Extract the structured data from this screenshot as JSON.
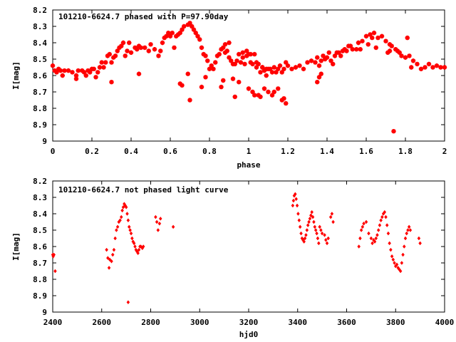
{
  "chart_data": [
    {
      "type": "scatter",
      "title": "101210-6624.7 phased with P=97.90day",
      "xlabel": "phase",
      "ylabel": "I[mag]",
      "xlim": [
        0,
        2
      ],
      "ylim": [
        8.2,
        9
      ],
      "y_inverted": true,
      "xticks": [
        "0",
        "0.2",
        "0.4",
        "0.6",
        "0.8",
        "1",
        "1.2",
        "1.4",
        "1.6",
        "1.8",
        "2"
      ],
      "xtick_values": [
        0,
        0.2,
        0.4,
        0.6,
        0.8,
        1,
        1.2,
        1.4,
        1.6,
        1.8,
        2
      ],
      "yticks": [
        "8.2",
        "8.3",
        "8.4",
        "8.5",
        "8.6",
        "8.7",
        "8.8",
        "8.9",
        "9"
      ],
      "ytick_values": [
        8.2,
        8.3,
        8.4,
        8.5,
        8.6,
        8.7,
        8.8,
        8.9,
        9.0
      ],
      "marker": "star",
      "color": "#ff0000",
      "series": [
        {
          "x": [
            0.0,
            0.01,
            0.02,
            0.03,
            0.04,
            0.06,
            0.08,
            0.1,
            0.12,
            0.13,
            0.15,
            0.16,
            0.17,
            0.18,
            0.19,
            0.2,
            0.21,
            0.22,
            0.23,
            0.24,
            0.25,
            0.26,
            0.27,
            0.28,
            0.29,
            0.3,
            0.31,
            0.32,
            0.33,
            0.34,
            0.35,
            0.36,
            0.37,
            0.38,
            0.39,
            0.4,
            0.42,
            0.43,
            0.44,
            0.45,
            0.47,
            0.49,
            0.5,
            0.52,
            0.54,
            0.55,
            0.56,
            0.57,
            0.58,
            0.59,
            0.6,
            0.61,
            0.62,
            0.63,
            0.64,
            0.65,
            0.66,
            0.67,
            0.69,
            0.7,
            0.71,
            0.72,
            0.73,
            0.74,
            0.75,
            0.76,
            0.77,
            0.78,
            0.79,
            0.8,
            0.81,
            0.82,
            0.83,
            0.84,
            0.85,
            0.86,
            0.87,
            0.88,
            0.89,
            0.9,
            0.91,
            0.92,
            0.93,
            0.94,
            0.95,
            0.96,
            0.97,
            0.98,
            0.99,
            1.0,
            1.01,
            1.02,
            1.03,
            1.04,
            1.05,
            1.06,
            1.07,
            1.08,
            1.09,
            1.1,
            1.11,
            1.12,
            1.13,
            1.14,
            1.15,
            1.16,
            1.17,
            1.18,
            1.19,
            1.2,
            1.22,
            1.24,
            1.26,
            1.28,
            1.3,
            1.32,
            1.34,
            1.35,
            1.36,
            1.37,
            1.38,
            1.39,
            1.4,
            1.41,
            1.42,
            1.43,
            1.44,
            1.45,
            1.46,
            1.47,
            1.48,
            1.49,
            1.5,
            1.51,
            1.52,
            1.53,
            1.55,
            1.56,
            1.58,
            1.6,
            1.62,
            1.63,
            1.64,
            1.66,
            1.68,
            1.7,
            1.72,
            1.73,
            1.75,
            1.77,
            1.78,
            1.8,
            1.82,
            1.84,
            1.86,
            1.88,
            1.9,
            1.92,
            1.94,
            1.96,
            1.98,
            2.0,
            0.65,
            0.66,
            0.69,
            0.7,
            0.86,
            0.87,
            0.92,
            0.93,
            0.95,
            1.0,
            1.02,
            1.03,
            1.05,
            1.06,
            1.08,
            1.1,
            1.12,
            1.13,
            1.15,
            1.17,
            1.18,
            1.19,
            0.44,
            0.3,
            0.12,
            0.05,
            0.76,
            0.78,
            0.88,
            0.9,
            0.97,
            0.99,
            1.01,
            1.04,
            1.07,
            1.09,
            1.35,
            1.36,
            1.37,
            1.57,
            1.61,
            1.65,
            1.71,
            1.72,
            1.74,
            1.76,
            1.81,
            1.83
          ],
          "y": [
            8.54,
            8.57,
            8.58,
            8.56,
            8.57,
            8.57,
            8.57,
            8.58,
            8.6,
            8.57,
            8.57,
            8.58,
            8.6,
            8.57,
            8.58,
            8.56,
            8.56,
            8.61,
            8.58,
            8.55,
            8.52,
            8.55,
            8.52,
            8.48,
            8.47,
            8.52,
            8.49,
            8.48,
            8.45,
            8.43,
            8.42,
            8.4,
            8.48,
            8.45,
            8.4,
            8.46,
            8.43,
            8.44,
            8.42,
            8.43,
            8.43,
            8.45,
            8.41,
            8.44,
            8.48,
            8.45,
            8.4,
            8.37,
            8.36,
            8.34,
            8.36,
            8.34,
            8.43,
            8.36,
            8.35,
            8.34,
            8.32,
            8.3,
            8.29,
            8.28,
            8.3,
            8.32,
            8.34,
            8.36,
            8.38,
            8.43,
            8.47,
            8.48,
            8.51,
            8.56,
            8.54,
            8.56,
            8.52,
            8.48,
            8.47,
            8.44,
            8.43,
            8.41,
            8.45,
            8.49,
            8.51,
            8.53,
            8.53,
            8.51,
            8.47,
            8.52,
            8.49,
            8.53,
            8.48,
            8.47,
            8.52,
            8.53,
            8.47,
            8.55,
            8.53,
            8.58,
            8.55,
            8.57,
            8.56,
            8.56,
            8.56,
            8.58,
            8.55,
            8.58,
            8.56,
            8.54,
            8.58,
            8.56,
            8.52,
            8.54,
            8.56,
            8.55,
            8.54,
            8.56,
            8.52,
            8.51,
            8.52,
            8.49,
            8.54,
            8.51,
            8.48,
            8.5,
            8.49,
            8.46,
            8.51,
            8.53,
            8.48,
            8.46,
            8.46,
            8.48,
            8.45,
            8.44,
            8.45,
            8.42,
            8.42,
            8.44,
            8.44,
            8.4,
            8.39,
            8.36,
            8.35,
            8.37,
            8.34,
            8.37,
            8.36,
            8.39,
            8.45,
            8.42,
            8.44,
            8.46,
            8.48,
            8.49,
            8.48,
            8.51,
            8.53,
            8.56,
            8.55,
            8.53,
            8.55,
            8.54,
            8.55,
            8.55,
            8.65,
            8.66,
            8.59,
            8.75,
            8.67,
            8.63,
            8.62,
            8.73,
            8.64,
            8.68,
            8.7,
            8.72,
            8.72,
            8.73,
            8.68,
            8.7,
            8.72,
            8.7,
            8.68,
            8.75,
            8.74,
            8.77,
            8.59,
            8.64,
            8.62,
            8.6,
            8.67,
            8.61,
            8.46,
            8.4,
            8.46,
            8.45,
            8.47,
            8.52,
            8.55,
            8.6,
            8.64,
            8.61,
            8.59,
            8.44,
            8.41,
            8.43,
            8.46,
            8.41,
            8.94,
            8.45,
            8.37,
            8.55
          ]
        }
      ]
    },
    {
      "type": "scatter",
      "title": "101210-6624.7 not phased light curve",
      "xlabel": "hjd0",
      "ylabel": "I[mag]",
      "xlim": [
        2400,
        4000
      ],
      "ylim": [
        8.2,
        9
      ],
      "y_inverted": true,
      "xticks": [
        "2400",
        "2600",
        "2800",
        "3000",
        "3200",
        "3400",
        "3600",
        "3800",
        "4000"
      ],
      "xtick_values": [
        2400,
        2600,
        2800,
        3000,
        3200,
        3400,
        3600,
        3800,
        4000
      ],
      "yticks": [
        "8.2",
        "8.3",
        "8.4",
        "8.5",
        "8.6",
        "8.7",
        "8.8",
        "8.9",
        "9"
      ],
      "ytick_values": [
        8.2,
        8.3,
        8.4,
        8.5,
        8.6,
        8.7,
        8.8,
        8.9,
        9.0
      ],
      "marker": "diamond",
      "color": "#ff0000",
      "series": [
        {
          "x": [
            2400,
            2402,
            2405,
            2410,
            2620,
            2625,
            2630,
            2633,
            2640,
            2645,
            2650,
            2655,
            2660,
            2665,
            2670,
            2675,
            2680,
            2684,
            2688,
            2692,
            2696,
            2700,
            2704,
            2708,
            2712,
            2716,
            2720,
            2724,
            2728,
            2732,
            2736,
            2740,
            2744,
            2748,
            2752,
            2756,
            2760,
            2766,
            2770,
            2708,
            2820,
            2825,
            2830,
            2836,
            2840,
            2892,
            3380,
            3383,
            3386,
            3390,
            3394,
            3398,
            3402,
            3406,
            3410,
            3414,
            3418,
            3422,
            3426,
            3430,
            3434,
            3438,
            3442,
            3446,
            3450,
            3454,
            3458,
            3462,
            3466,
            3470,
            3474,
            3478,
            3482,
            3486,
            3490,
            3495,
            3500,
            3510,
            3515,
            3520,
            3525,
            3535,
            3540,
            3545,
            3650,
            3655,
            3660,
            3665,
            3670,
            3680,
            3690,
            3700,
            3705,
            3710,
            3715,
            3720,
            3725,
            3730,
            3735,
            3740,
            3745,
            3750,
            3755,
            3760,
            3765,
            3770,
            3775,
            3780,
            3785,
            3790,
            3795,
            3800,
            3805,
            3810,
            3815,
            3820,
            3825,
            3830,
            3835,
            3840,
            3845,
            3850,
            3855,
            3860,
            3895,
            3900
          ],
          "y": [
            8.65,
            8.66,
            8.65,
            8.75,
            8.62,
            8.67,
            8.73,
            8.68,
            8.69,
            8.65,
            8.62,
            8.55,
            8.5,
            8.48,
            8.45,
            8.44,
            8.42,
            8.38,
            8.36,
            8.34,
            8.35,
            8.36,
            8.4,
            8.44,
            8.48,
            8.5,
            8.52,
            8.55,
            8.57,
            8.58,
            8.6,
            8.62,
            8.63,
            8.64,
            8.62,
            8.6,
            8.6,
            8.61,
            8.6,
            8.94,
            8.42,
            8.45,
            8.5,
            8.46,
            8.43,
            8.48,
            8.35,
            8.32,
            8.29,
            8.28,
            8.31,
            8.35,
            8.4,
            8.44,
            8.48,
            8.52,
            8.55,
            8.56,
            8.57,
            8.55,
            8.53,
            8.5,
            8.47,
            8.45,
            8.43,
            8.41,
            8.39,
            8.42,
            8.45,
            8.48,
            8.5,
            8.52,
            8.55,
            8.58,
            8.48,
            8.5,
            8.52,
            8.53,
            8.56,
            8.58,
            8.55,
            8.42,
            8.4,
            8.45,
            8.6,
            8.55,
            8.5,
            8.48,
            8.46,
            8.45,
            8.52,
            8.55,
            8.58,
            8.56,
            8.57,
            8.55,
            8.53,
            8.5,
            8.47,
            8.44,
            8.42,
            8.4,
            8.39,
            8.42,
            8.47,
            8.52,
            8.58,
            8.62,
            8.66,
            8.68,
            8.7,
            8.72,
            8.71,
            8.73,
            8.74,
            8.75,
            8.7,
            8.65,
            8.6,
            8.55,
            8.52,
            8.5,
            8.48,
            8.5,
            8.55,
            8.58
          ]
        }
      ]
    }
  ]
}
